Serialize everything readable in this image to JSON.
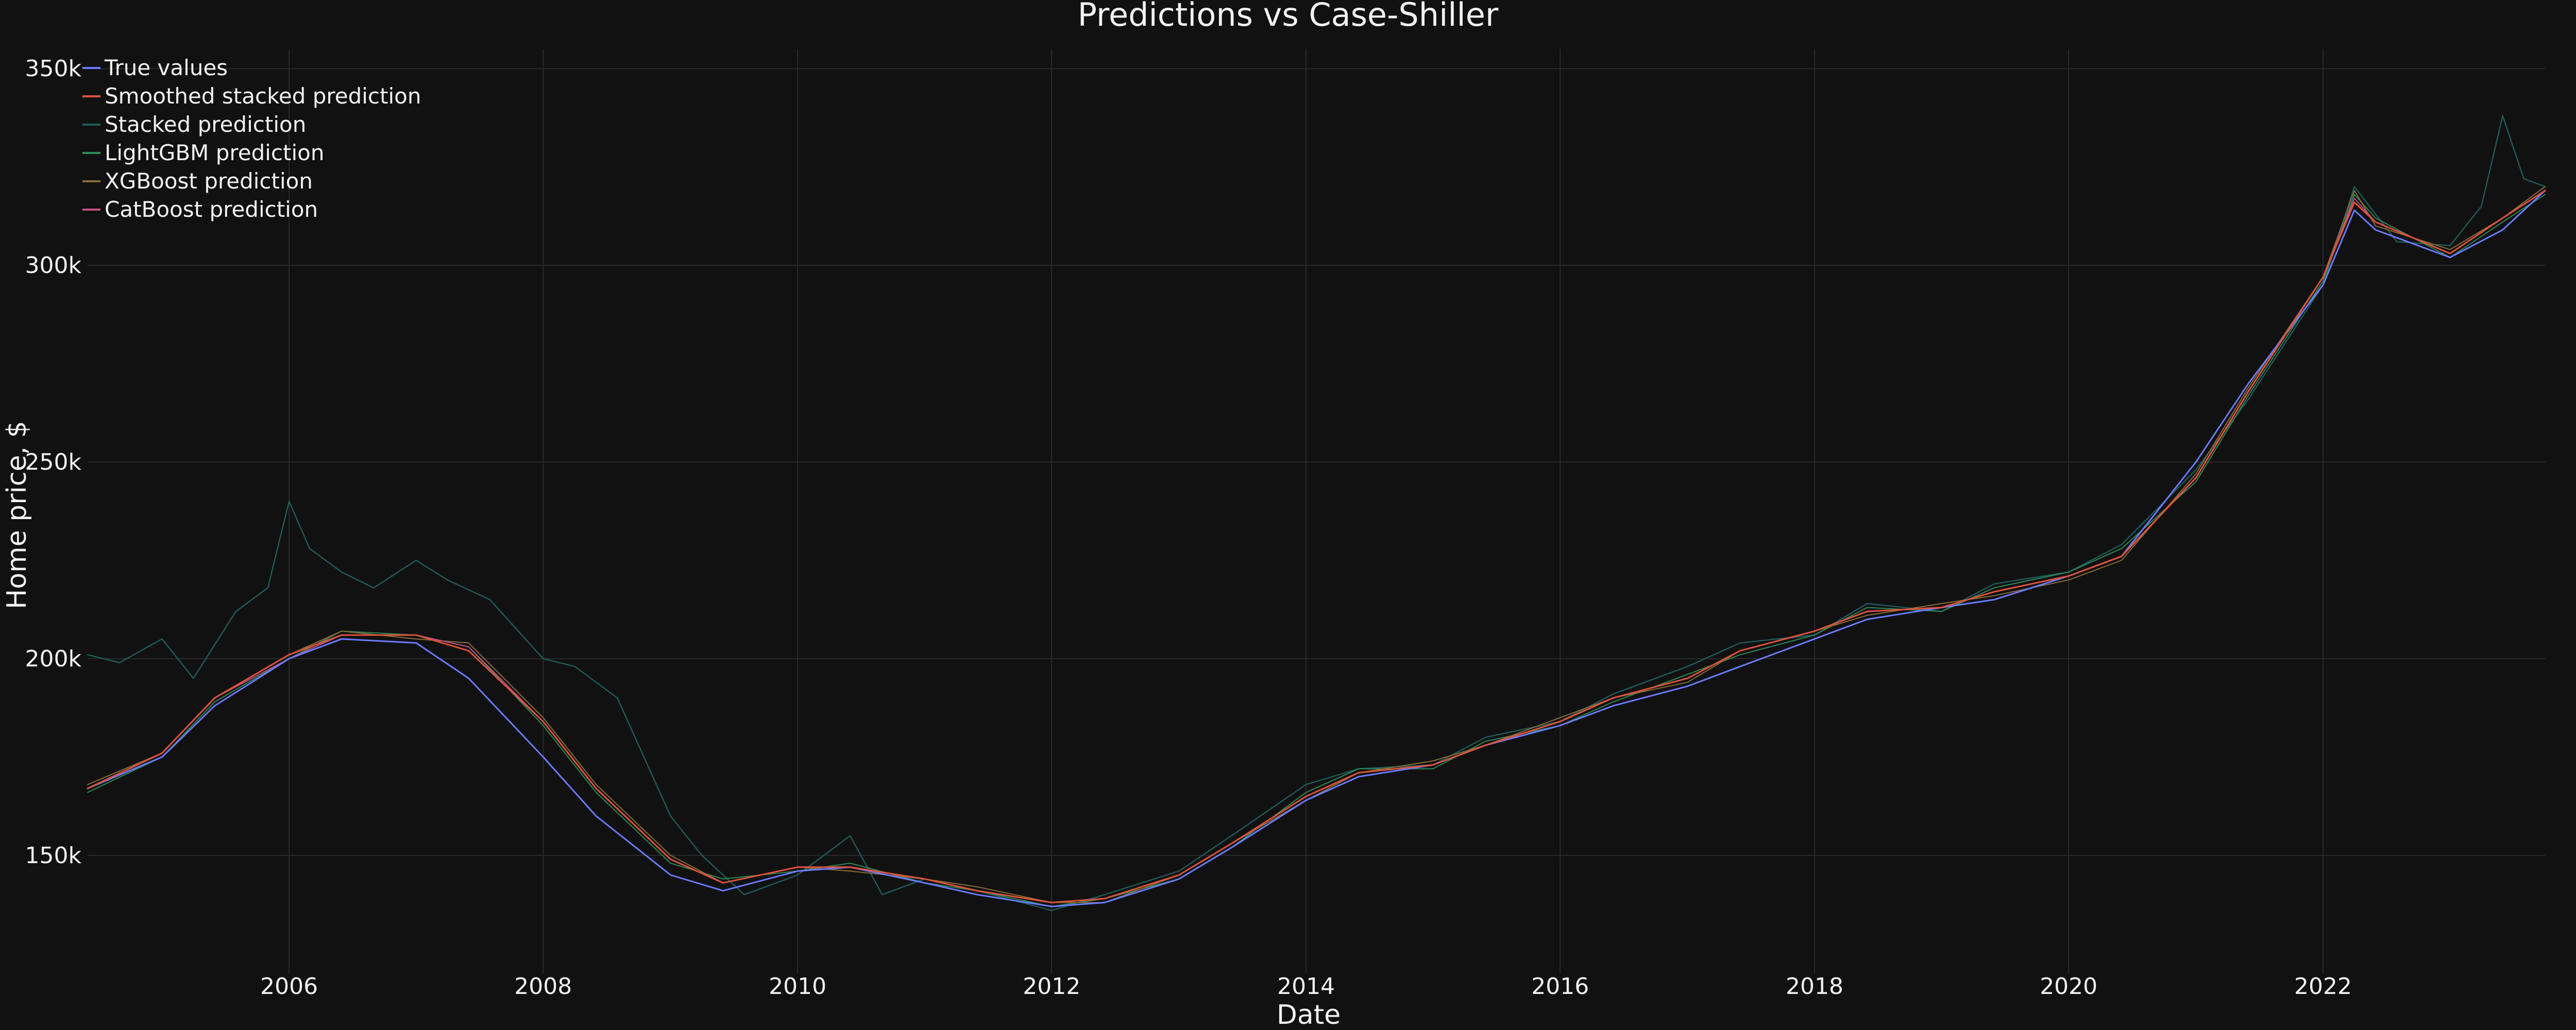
{
  "chart_data": {
    "type": "line",
    "title": "Predictions vs Case-Shiller",
    "xlabel": "Date",
    "ylabel": "Home price, $",
    "x_range": [
      "2004-06-01",
      "2023-10-01"
    ],
    "y_range": [
      120000,
      355000
    ],
    "x_ticks": [
      {
        "date": "2006-01-01",
        "label": "2006"
      },
      {
        "date": "2008-01-01",
        "label": "2008"
      },
      {
        "date": "2010-01-01",
        "label": "2010"
      },
      {
        "date": "2012-01-01",
        "label": "2012"
      },
      {
        "date": "2014-01-01",
        "label": "2014"
      },
      {
        "date": "2016-01-01",
        "label": "2016"
      },
      {
        "date": "2018-01-01",
        "label": "2018"
      },
      {
        "date": "2020-01-01",
        "label": "2020"
      },
      {
        "date": "2022-01-01",
        "label": "2022"
      }
    ],
    "y_ticks": [
      {
        "value": 150000,
        "label": "150k"
      },
      {
        "value": 200000,
        "label": "200k"
      },
      {
        "value": 250000,
        "label": "250k"
      },
      {
        "value": 300000,
        "label": "300k"
      },
      {
        "value": 350000,
        "label": "350k"
      }
    ],
    "grid": true,
    "legend_position": "top-left",
    "series": [
      {
        "name": "True values",
        "color": "#6b7cff",
        "x": [
          "2004-06-01",
          "2005-01-01",
          "2005-06-01",
          "2006-01-01",
          "2006-06-01",
          "2007-01-01",
          "2007-06-01",
          "2008-01-01",
          "2008-06-01",
          "2009-01-01",
          "2009-06-01",
          "2010-01-01",
          "2010-06-01",
          "2011-01-01",
          "2011-06-01",
          "2012-01-01",
          "2012-06-01",
          "2013-01-01",
          "2013-06-01",
          "2014-01-01",
          "2014-06-01",
          "2015-01-01",
          "2015-06-01",
          "2016-01-01",
          "2016-06-01",
          "2017-01-01",
          "2017-06-01",
          "2018-01-01",
          "2018-06-01",
          "2019-01-01",
          "2019-06-01",
          "2020-01-01",
          "2020-06-01",
          "2021-01-01",
          "2021-06-01",
          "2022-01-01",
          "2022-04-01",
          "2022-06-01",
          "2023-01-01",
          "2023-06-01",
          "2023-10-01"
        ],
        "y": [
          167000,
          175000,
          188000,
          200000,
          205000,
          204000,
          195000,
          175000,
          160000,
          145000,
          141000,
          146000,
          147000,
          143000,
          140000,
          137000,
          138000,
          144000,
          152000,
          164000,
          170000,
          173000,
          178000,
          183000,
          188000,
          193000,
          198000,
          205000,
          210000,
          213000,
          215000,
          221000,
          226000,
          250000,
          270000,
          295000,
          314000,
          309000,
          302000,
          309000,
          319000
        ]
      },
      {
        "name": "Smoothed stacked prediction",
        "color": "#e0533b",
        "x": [
          "2004-06-01",
          "2005-01-01",
          "2005-06-01",
          "2006-01-01",
          "2006-06-01",
          "2007-01-01",
          "2007-06-01",
          "2008-01-01",
          "2008-06-01",
          "2009-01-01",
          "2009-06-01",
          "2010-01-01",
          "2010-06-01",
          "2011-01-01",
          "2011-06-01",
          "2012-01-01",
          "2012-06-01",
          "2013-01-01",
          "2013-06-01",
          "2014-01-01",
          "2014-06-01",
          "2015-01-01",
          "2015-06-01",
          "2016-01-01",
          "2016-06-01",
          "2017-01-01",
          "2017-06-01",
          "2018-01-01",
          "2018-06-01",
          "2019-01-01",
          "2019-06-01",
          "2020-01-01",
          "2020-06-01",
          "2021-01-01",
          "2021-06-01",
          "2022-01-01",
          "2022-04-01",
          "2022-06-01",
          "2023-01-01",
          "2023-06-01",
          "2023-10-01"
        ],
        "y": [
          167000,
          176000,
          190000,
          201000,
          206000,
          206000,
          202000,
          184000,
          167000,
          149000,
          143000,
          147000,
          147000,
          144000,
          141000,
          138000,
          139000,
          145000,
          153000,
          165000,
          171000,
          173000,
          178000,
          184000,
          190000,
          195000,
          202000,
          207000,
          212000,
          213000,
          217000,
          221000,
          226000,
          246000,
          268000,
          297000,
          316000,
          311000,
          303000,
          312000,
          319000
        ]
      },
      {
        "name": "Stacked prediction",
        "color": "#1f5a5a",
        "x": [
          "2004-06-01",
          "2004-09-01",
          "2005-01-01",
          "2005-04-01",
          "2005-08-01",
          "2005-11-01",
          "2006-01-01",
          "2006-03-01",
          "2006-06-01",
          "2006-09-01",
          "2007-01-01",
          "2007-04-01",
          "2007-08-01",
          "2008-01-01",
          "2008-04-01",
          "2008-08-01",
          "2009-01-01",
          "2009-04-01",
          "2009-08-01",
          "2010-01-01",
          "2010-06-01",
          "2010-09-01",
          "2011-01-01",
          "2011-06-01",
          "2012-01-01",
          "2012-06-01",
          "2013-01-01",
          "2013-06-01",
          "2014-01-01",
          "2014-06-01",
          "2015-01-01",
          "2015-06-01",
          "2016-01-01",
          "2016-06-01",
          "2017-01-01",
          "2017-06-01",
          "2018-01-01",
          "2018-06-01",
          "2019-01-01",
          "2019-06-01",
          "2020-01-01",
          "2020-06-01",
          "2021-01-01",
          "2021-06-01",
          "2022-01-01",
          "2022-04-01",
          "2022-08-01",
          "2023-01-01",
          "2023-04-01",
          "2023-06-01",
          "2023-08-01",
          "2023-10-01"
        ],
        "y": [
          201000,
          199000,
          205000,
          195000,
          212000,
          218000,
          240000,
          228000,
          222000,
          218000,
          225000,
          220000,
          215000,
          200000,
          198000,
          190000,
          160000,
          150000,
          140000,
          145000,
          155000,
          140000,
          144000,
          141000,
          136000,
          140000,
          146000,
          155000,
          168000,
          172000,
          173000,
          180000,
          184000,
          191000,
          198000,
          204000,
          206000,
          214000,
          212000,
          219000,
          222000,
          229000,
          248000,
          266000,
          295000,
          320000,
          306000,
          305000,
          315000,
          338000,
          322000,
          320000
        ]
      },
      {
        "name": "LightGBM prediction",
        "color": "#2e8b57",
        "x": [
          "2004-06-01",
          "2005-01-01",
          "2005-06-01",
          "2006-01-01",
          "2006-06-01",
          "2007-01-01",
          "2007-06-01",
          "2008-01-01",
          "2008-06-01",
          "2009-01-01",
          "2009-06-01",
          "2010-01-01",
          "2010-06-01",
          "2011-01-01",
          "2011-06-01",
          "2012-01-01",
          "2012-06-01",
          "2013-01-01",
          "2013-06-01",
          "2014-01-01",
          "2014-06-01",
          "2015-01-01",
          "2015-06-01",
          "2016-01-01",
          "2016-06-01",
          "2017-01-01",
          "2017-06-01",
          "2018-01-01",
          "2018-06-01",
          "2019-01-01",
          "2019-06-01",
          "2020-01-01",
          "2020-06-01",
          "2021-01-01",
          "2021-06-01",
          "2022-01-01",
          "2022-04-01",
          "2022-06-01",
          "2023-01-01",
          "2023-06-01",
          "2023-10-01"
        ],
        "y": [
          166000,
          175000,
          189000,
          200000,
          207000,
          206000,
          203000,
          183000,
          166000,
          148000,
          144000,
          146000,
          148000,
          143000,
          141000,
          137000,
          139000,
          144000,
          152000,
          166000,
          172000,
          172000,
          179000,
          183000,
          189000,
          196000,
          201000,
          206000,
          213000,
          212000,
          218000,
          222000,
          228000,
          245000,
          267000,
          296000,
          318000,
          312000,
          302000,
          311000,
          318000
        ]
      },
      {
        "name": "XGBoost prediction",
        "color": "#8a6d3b",
        "x": [
          "2004-06-01",
          "2005-01-01",
          "2005-06-01",
          "2006-01-01",
          "2006-06-01",
          "2007-01-01",
          "2007-06-01",
          "2008-01-01",
          "2008-06-01",
          "2009-01-01",
          "2009-06-01",
          "2010-01-01",
          "2010-06-01",
          "2011-01-01",
          "2011-06-01",
          "2012-01-01",
          "2012-06-01",
          "2013-01-01",
          "2013-06-01",
          "2014-01-01",
          "2014-06-01",
          "2015-01-01",
          "2015-06-01",
          "2016-01-01",
          "2016-06-01",
          "2017-01-01",
          "2017-06-01",
          "2018-01-01",
          "2018-06-01",
          "2019-01-01",
          "2019-06-01",
          "2020-01-01",
          "2020-06-01",
          "2021-01-01",
          "2021-06-01",
          "2022-01-01",
          "2022-04-01",
          "2022-06-01",
          "2023-01-01",
          "2023-06-01",
          "2023-10-01"
        ],
        "y": [
          168000,
          176000,
          190000,
          201000,
          207000,
          205000,
          204000,
          185000,
          168000,
          150000,
          143000,
          147000,
          146000,
          144000,
          142000,
          138000,
          138000,
          145000,
          153000,
          164000,
          171000,
          174000,
          178000,
          185000,
          190000,
          194000,
          202000,
          207000,
          211000,
          214000,
          216000,
          220000,
          225000,
          247000,
          269000,
          297000,
          319000,
          310000,
          304000,
          312000,
          320000
        ]
      },
      {
        "name": "CatBoost prediction",
        "color": "#c0508a",
        "x": [
          "2004-06-01",
          "2005-01-01",
          "2005-06-01",
          "2006-01-01",
          "2006-06-01",
          "2007-01-01",
          "2007-06-01",
          "2008-01-01",
          "2008-06-01",
          "2009-01-01",
          "2009-06-01",
          "2010-01-01",
          "2010-06-01",
          "2011-01-01",
          "2011-06-01",
          "2012-01-01",
          "2012-06-01",
          "2013-01-01",
          "2013-06-01",
          "2014-01-01",
          "2014-06-01",
          "2015-01-01",
          "2015-06-01",
          "2016-01-01",
          "2016-06-01",
          "2017-01-01",
          "2017-06-01",
          "2018-01-01",
          "2018-06-01",
          "2019-01-01",
          "2019-06-01",
          "2020-01-01",
          "2020-06-01",
          "2021-01-01",
          "2021-06-01",
          "2022-01-01",
          "2022-04-01",
          "2022-06-01",
          "2023-01-01",
          "2023-06-01",
          "2023-10-01"
        ],
        "y": [
          167000,
          176000,
          190000,
          200000,
          206000,
          206000,
          203000,
          184000,
          167000,
          149000,
          143000,
          147000,
          147000,
          144000,
          141000,
          138000,
          139000,
          145000,
          153000,
          165000,
          171000,
          173000,
          178000,
          184000,
          190000,
          195000,
          202000,
          207000,
          212000,
          213000,
          217000,
          221000,
          226000,
          246000,
          268000,
          297000,
          317000,
          311000,
          303000,
          312000,
          319000
        ]
      }
    ]
  }
}
